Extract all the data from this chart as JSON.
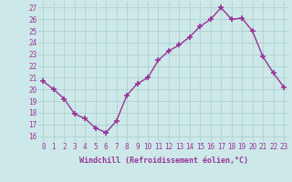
{
  "x": [
    0,
    1,
    2,
    3,
    4,
    5,
    6,
    7,
    8,
    9,
    10,
    11,
    12,
    13,
    14,
    15,
    16,
    17,
    18,
    19,
    20,
    21,
    22,
    23
  ],
  "y": [
    20.7,
    20.0,
    19.2,
    17.9,
    17.5,
    16.7,
    16.3,
    17.3,
    19.5,
    20.5,
    21.0,
    22.5,
    23.3,
    23.8,
    24.5,
    25.4,
    26.0,
    27.0,
    26.0,
    26.1,
    25.0,
    22.8,
    21.4,
    20.2
  ],
  "line_color": "#993399",
  "marker": "+",
  "marker_size": 4,
  "marker_lw": 1.2,
  "bg_color": "#cce8e8",
  "grid_color": "#aacccc",
  "xlabel": "Windchill (Refroidissement éolien,°C)",
  "xlabel_color": "#993399",
  "tick_label_color": "#993399",
  "ylim": [
    15.5,
    27.5
  ],
  "yticks": [
    16,
    17,
    18,
    19,
    20,
    21,
    22,
    23,
    24,
    25,
    26,
    27
  ],
  "xlim": [
    -0.5,
    23.5
  ],
  "xticks": [
    0,
    1,
    2,
    3,
    4,
    5,
    6,
    7,
    8,
    9,
    10,
    11,
    12,
    13,
    14,
    15,
    16,
    17,
    18,
    19,
    20,
    21,
    22,
    23
  ],
  "tick_fontsize": 5.5,
  "xlabel_fontsize": 6.0,
  "linewidth": 1.0
}
